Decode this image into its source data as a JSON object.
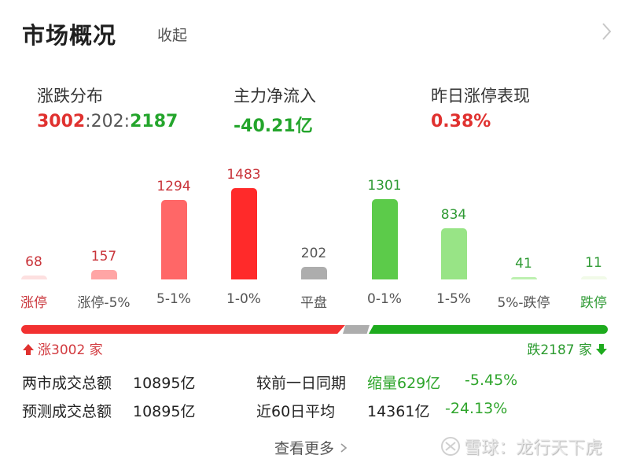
{
  "header": {
    "title": "市场概况",
    "collapse_label": "收起",
    "chevron_icon": "chevron-right-icon"
  },
  "stats": {
    "distribution": {
      "label": "涨跌分布",
      "up": "3002",
      "sep1": ":",
      "flat": "202",
      "sep2": ":",
      "down": "2187"
    },
    "main_net_inflow": {
      "label": "主力净流入",
      "value": "-40.21亿"
    },
    "yesterday_limit_up": {
      "label": "昨日涨停表现",
      "value": "0.38%"
    }
  },
  "chart_data": {
    "type": "bar",
    "title": "涨跌分布",
    "categories": [
      "涨停",
      "涨停-5%",
      "5-1%",
      "1-0%",
      "平盘",
      "0-1%",
      "1-5%",
      "5%-跌停",
      "跌停"
    ],
    "values": [
      68,
      157,
      1294,
      1483,
      202,
      1301,
      834,
      41,
      11
    ],
    "value_labels": [
      "68",
      "157",
      "1294",
      "1483",
      "202",
      "1301",
      "834",
      "41",
      "11"
    ],
    "colors": [
      "#fde0e0",
      "#ffa5a5",
      "#ff6767",
      "#ff2a2a",
      "#adadad",
      "#5ccb4a",
      "#98e486",
      "#bdf0b0",
      "#f1fae8"
    ],
    "label_colors": [
      "#c9343a",
      "#c9343a",
      "#c9343a",
      "#c9343a",
      "#555555",
      "#2f9a34",
      "#2f9a34",
      "#2f9a34",
      "#2f9a34"
    ],
    "category_colors": [
      "#c9343a",
      "#555555",
      "#555555",
      "#555555",
      "#555555",
      "#555555",
      "#555555",
      "#555555",
      "#2f9a34"
    ],
    "xlabel": "",
    "ylabel": "",
    "grid": false,
    "legend": false
  },
  "progress": {
    "up_label": "涨",
    "up_count": "3002",
    "up_unit": "家",
    "down_label": "跌",
    "down_count": "2187",
    "down_unit": "家",
    "up_icon": "arrow-up-icon",
    "down_icon": "arrow-down-icon",
    "colors": {
      "up": "#f23131",
      "flat": "#adadad",
      "down": "#1eab1e"
    }
  },
  "turnover": {
    "rows": [
      {
        "label": "两市成交总额",
        "value": "10895亿",
        "compare_label": "较前一日同期",
        "compare_value": "缩量629亿",
        "compare_pct": "-5.45%"
      },
      {
        "label": "预测成交总额",
        "value": "10895亿",
        "compare_label": "近60日平均",
        "compare_value": "14361亿",
        "compare_pct": "-24.13%"
      }
    ]
  },
  "footer": {
    "more_label": "查看更多",
    "more_icon": "chevron-right-icon",
    "watermark": "雪球：龙行天下虎"
  }
}
